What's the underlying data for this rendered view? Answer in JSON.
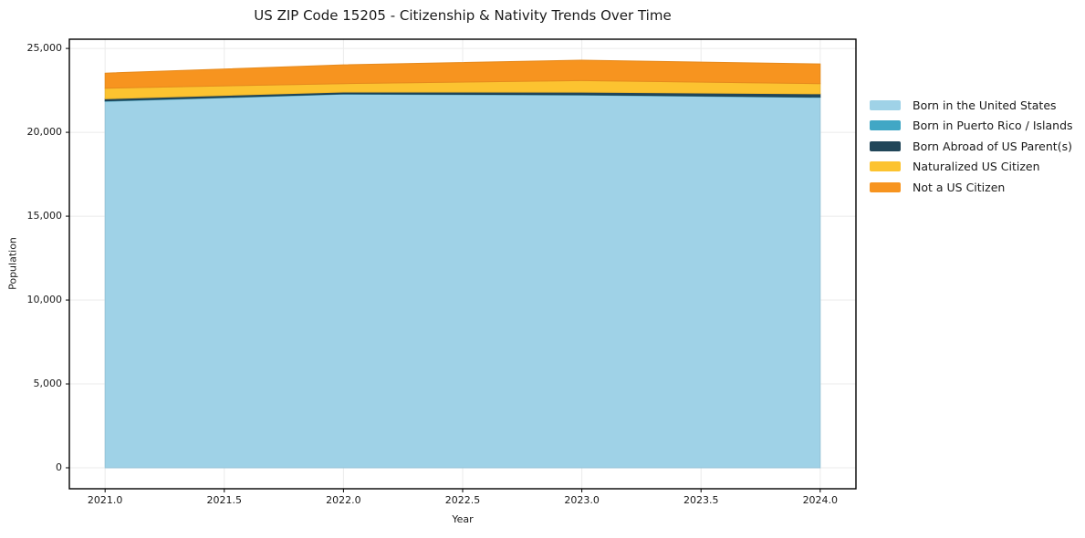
{
  "chart": {
    "title": "US ZIP Code 15205 - Citizenship & Nativity Trends Over Time",
    "xlabel": "Year",
    "ylabel": "Population"
  },
  "chart_data": {
    "type": "area",
    "stacked": true,
    "title": "US ZIP Code 15205 - Citizenship & Nativity Trends Over Time",
    "xlabel": "Year",
    "ylabel": "Population",
    "x": [
      2021,
      2022,
      2023,
      2024
    ],
    "series": [
      {
        "name": "Born in the United States",
        "color": "#9FD2E7",
        "values": [
          21850,
          22270,
          22215,
          22080
        ]
      },
      {
        "name": "Born in Puerto Rico / Islands",
        "color": "#41A7C5",
        "values": [
          25,
          25,
          25,
          25
        ]
      },
      {
        "name": "Born Abroad of US Parent(s)",
        "color": "#214659",
        "values": [
          125,
          100,
          150,
          190
        ]
      },
      {
        "name": "Naturalized US Citizen",
        "color": "#FCC330",
        "values": [
          630,
          510,
          690,
          600
        ]
      },
      {
        "name": "Not a US Citizen",
        "color": "#F7941F",
        "values": [
          900,
          1120,
          1220,
          1180
        ]
      }
    ],
    "totals": [
      23530,
      24025,
      24300,
      24075
    ],
    "xlim": [
      2020.85,
      2024.15
    ],
    "ylim": [
      -1250,
      25550
    ],
    "xticks": {
      "values": [
        2021.0,
        2021.5,
        2022.0,
        2022.5,
        2023.0,
        2023.5,
        2024.0
      ],
      "labels": [
        "2021.0",
        "2021.5",
        "2022.0",
        "2022.5",
        "2023.0",
        "2023.5",
        "2024.0"
      ]
    },
    "yticks": {
      "values": [
        0,
        5000,
        10000,
        15000,
        20000,
        25000
      ],
      "labels": [
        "0",
        "5,000",
        "10,000",
        "15,000",
        "20,000",
        "25,000"
      ]
    },
    "grid": true,
    "grid_color": "#ebebeb",
    "spine_color": "#000000",
    "background_color": "#ffffff",
    "legend_position": "right-outside"
  }
}
